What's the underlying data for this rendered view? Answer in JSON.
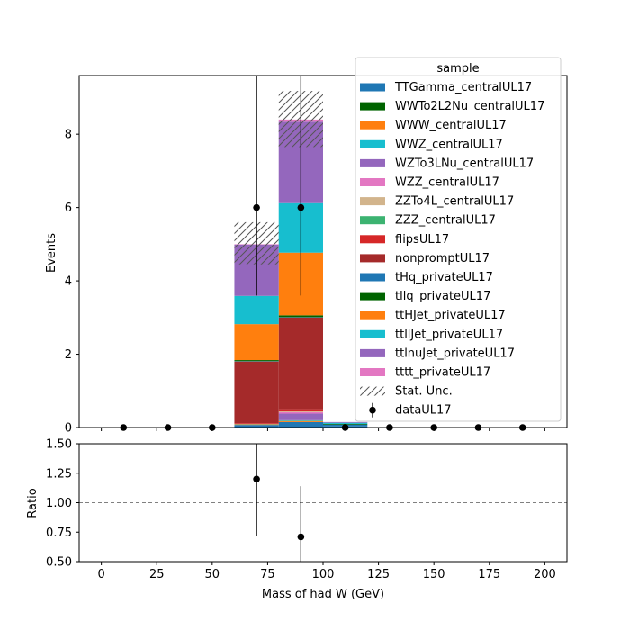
{
  "chart_data": [
    {
      "type": "bar",
      "stacked": true,
      "ylabel": "Events",
      "xlim": [
        -10,
        210
      ],
      "ylim": [
        0,
        9.6
      ],
      "xticks": [
        0,
        25,
        50,
        75,
        100,
        125,
        150,
        175,
        200
      ],
      "yticks": [
        0,
        2,
        4,
        6,
        8
      ],
      "ytick_labels": [
        "0",
        "2",
        "4",
        "6",
        "8"
      ],
      "bin_edges": [
        0,
        20,
        40,
        60,
        80,
        100,
        120,
        140,
        160,
        180,
        200
      ],
      "series": [
        {
          "name": "TTGamma_centralUL17",
          "color": "#1f77b4",
          "values": [
            0,
            0,
            0,
            0.07,
            0.15,
            0.03,
            0,
            0,
            0,
            0
          ]
        },
        {
          "name": "WWTo2L2Nu_centralUL17",
          "color": "#006400",
          "values": [
            0,
            0,
            0,
            0,
            0,
            0,
            0,
            0,
            0,
            0
          ]
        },
        {
          "name": "WWW_centralUL17",
          "color": "#ff7f0e",
          "values": [
            0,
            0,
            0,
            0.02,
            0.03,
            0,
            0,
            0,
            0,
            0
          ]
        },
        {
          "name": "WWZ_centralUL17",
          "color": "#17becf",
          "values": [
            0,
            0,
            0,
            0.01,
            0.02,
            0,
            0,
            0,
            0,
            0
          ]
        },
        {
          "name": "WZTo3LNu_centralUL17",
          "color": "#9467bd",
          "values": [
            0,
            0,
            0,
            0,
            0.18,
            0,
            0,
            0,
            0,
            0
          ]
        },
        {
          "name": "WZZ_centralUL17",
          "color": "#e377c2",
          "values": [
            0,
            0,
            0,
            0,
            0.04,
            0,
            0,
            0,
            0,
            0
          ]
        },
        {
          "name": "ZZTo4L_centralUL17",
          "color": "#d2b48c",
          "values": [
            0,
            0,
            0,
            0,
            0.02,
            0,
            0,
            0,
            0,
            0
          ]
        },
        {
          "name": "ZZZ_centralUL17",
          "color": "#3cb371",
          "values": [
            0,
            0,
            0,
            0,
            0,
            0,
            0,
            0,
            0,
            0
          ]
        },
        {
          "name": "flipsUL17",
          "color": "#d62728",
          "values": [
            0,
            0,
            0,
            0.02,
            0.06,
            0,
            0,
            0,
            0,
            0
          ]
        },
        {
          "name": "nonpromptUL17",
          "color": "#a52a2a",
          "values": [
            0,
            0,
            0,
            1.68,
            2.5,
            0,
            0,
            0,
            0,
            0
          ]
        },
        {
          "name": "tHq_privateUL17",
          "color": "#1f77b4",
          "values": [
            0,
            0,
            0,
            0.01,
            0.01,
            0.05,
            0,
            0,
            0,
            0
          ]
        },
        {
          "name": "tllq_privateUL17",
          "color": "#006400",
          "values": [
            0,
            0,
            0,
            0.03,
            0.05,
            0.02,
            0,
            0,
            0,
            0
          ]
        },
        {
          "name": "ttHJet_privateUL17",
          "color": "#ff7f0e",
          "values": [
            0,
            0,
            0,
            0.98,
            1.71,
            0,
            0,
            0,
            0,
            0
          ]
        },
        {
          "name": "ttllJet_privateUL17",
          "color": "#17becf",
          "values": [
            0,
            0,
            0,
            0.77,
            1.35,
            0.03,
            0,
            0,
            0,
            0
          ]
        },
        {
          "name": "ttlnuJet_privateUL17",
          "color": "#9467bd",
          "values": [
            0,
            0,
            0,
            1.4,
            2.22,
            0.02,
            0,
            0,
            0,
            0
          ]
        },
        {
          "name": "tttt_privateUL17",
          "color": "#e377c2",
          "values": [
            0,
            0,
            0,
            0.01,
            0.06,
            0,
            0,
            0,
            0,
            0
          ]
        }
      ],
      "stat_unc": [
        {
          "bin": 3,
          "low": 4.45,
          "high": 5.6
        },
        {
          "bin": 4,
          "low": 7.65,
          "high": 9.18
        }
      ],
      "data": {
        "name": "dataUL17",
        "x": [
          10,
          30,
          50,
          70,
          90,
          110,
          130,
          150,
          170,
          190
        ],
        "y": [
          0,
          0,
          0,
          6,
          6,
          0,
          0,
          0,
          0,
          0
        ],
        "yerr_low": [
          0,
          0,
          0,
          2.4,
          2.4,
          0,
          0,
          0,
          0,
          0
        ],
        "yerr_high": [
          0,
          0,
          0,
          3.6,
          3.6,
          0,
          0,
          0,
          0,
          0
        ]
      },
      "legend": {
        "title": "sample",
        "placement": "top-right",
        "stat_label": "Stat. Unc."
      }
    },
    {
      "type": "scatter",
      "xlabel": "Mass of had W (GeV)",
      "ylabel": "Ratio",
      "xlim": [
        -10,
        210
      ],
      "ylim": [
        0.5,
        1.5
      ],
      "xticks": [
        0,
        25,
        50,
        75,
        100,
        125,
        150,
        175,
        200
      ],
      "xtick_labels": [
        "0",
        "25",
        "50",
        "75",
        "100",
        "125",
        "150",
        "175",
        "200"
      ],
      "yticks": [
        0.5,
        0.75,
        1.0,
        1.25,
        1.5
      ],
      "ytick_labels": [
        "0.50",
        "0.75",
        "1.00",
        "1.25",
        "1.50"
      ],
      "reference_line": 1.0,
      "points": [
        {
          "x": 70,
          "y": 1.2,
          "err_low": 0.48,
          "err_high": 0.72
        },
        {
          "x": 90,
          "y": 0.71,
          "err_low": 0.29,
          "err_high": 0.43
        }
      ]
    }
  ]
}
